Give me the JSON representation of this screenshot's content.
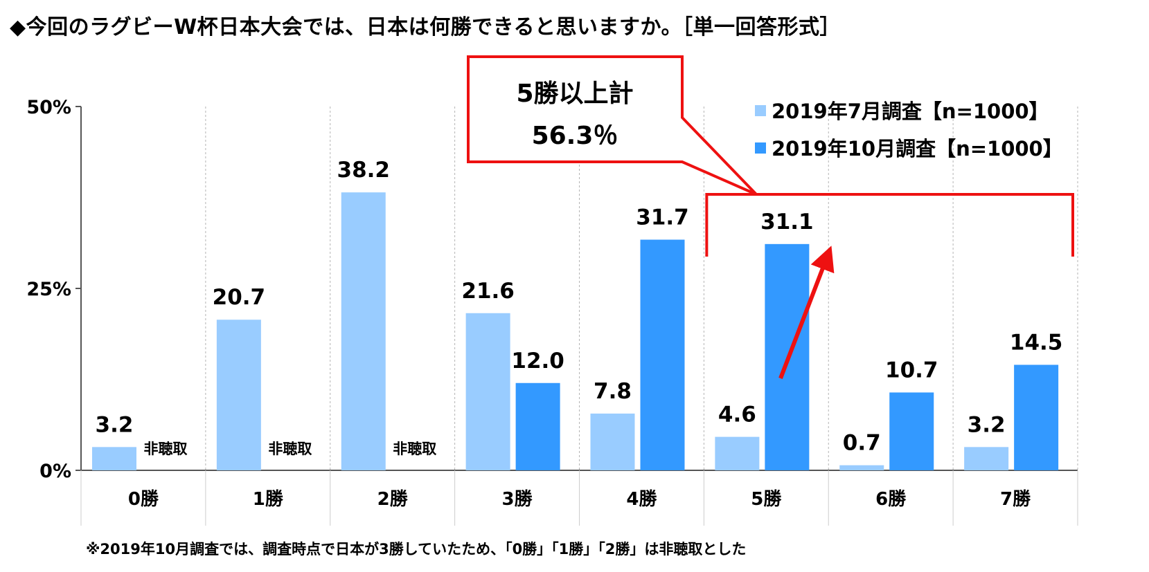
{
  "title": "◆今回のラグビーW杯日本大会では、日本は何勝できると思いますか。［単一回答形式］",
  "footnote": "※2019年10月調査では、調査時点で日本が3勝していたため、「0勝」「1勝」「2勝」は非聴取とした",
  "colors": {
    "july": "#99ccff",
    "october": "#3399ff",
    "annotation": "#ee1111",
    "grid": "#b3b3b3",
    "axis": "#555555"
  },
  "callout": {
    "line1": "5勝以上計",
    "line2": "56.3％"
  },
  "not_asked_label": "非聴取",
  "chart_data": {
    "type": "bar",
    "title": "◆今回のラグビーW杯日本大会では、日本は何勝できると思いますか。［単一回答形式］",
    "categories": [
      "0勝",
      "1勝",
      "2勝",
      "3勝",
      "4勝",
      "5勝",
      "6勝",
      "7勝"
    ],
    "series": [
      {
        "name": "2019年7月調査【n=1000】",
        "values": [
          3.2,
          20.7,
          38.2,
          21.6,
          7.8,
          4.6,
          0.7,
          3.2
        ]
      },
      {
        "name": "2019年10月調査【n=1000】",
        "values": [
          null,
          null,
          null,
          12.0,
          31.7,
          31.1,
          10.7,
          14.5
        ]
      }
    ],
    "value_labels": [
      [
        "3.2",
        "20.7",
        "38.2",
        "21.6",
        "7.8",
        "4.6",
        "0.7",
        "3.2"
      ],
      [
        "非聴取",
        "非聴取",
        "非聴取",
        "12.0",
        "31.7",
        "31.1",
        "10.7",
        "14.5"
      ]
    ],
    "ylim": [
      0,
      50
    ],
    "yticks": [
      "0%",
      "25%",
      "50%"
    ],
    "ytick_values": [
      0,
      25,
      50
    ],
    "grid": "vertical-dashed",
    "legend_position": "top-right"
  }
}
